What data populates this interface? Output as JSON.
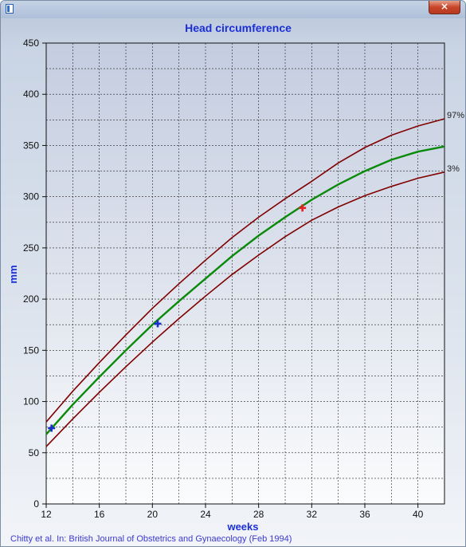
{
  "window": {
    "close_glyph": "×"
  },
  "chart_data": {
    "type": "line",
    "title": "Head circumference",
    "xlabel": "weeks",
    "ylabel": "mm",
    "xlim": [
      12,
      42
    ],
    "ylim": [
      0,
      450
    ],
    "xticks": [
      12,
      16,
      20,
      24,
      28,
      32,
      36,
      40
    ],
    "yticks": [
      0,
      50,
      100,
      150,
      200,
      250,
      300,
      350,
      400,
      450
    ],
    "grid": true,
    "curves": [
      {
        "label": "97%",
        "color": "#800000",
        "x": [
          12,
          14,
          16,
          18,
          20,
          22,
          24,
          26,
          28,
          30,
          32,
          34,
          36,
          38,
          40,
          42
        ],
        "y": [
          80,
          110,
          138,
          165,
          191,
          215,
          238,
          260,
          280,
          298,
          315,
          333,
          348,
          360,
          369,
          376
        ]
      },
      {
        "label": "",
        "color": "#0a8a0a",
        "x": [
          12,
          14,
          16,
          18,
          20,
          22,
          24,
          26,
          28,
          30,
          32,
          34,
          36,
          38,
          40,
          42
        ],
        "y": [
          68,
          97,
          124,
          150,
          175,
          198,
          220,
          242,
          262,
          280,
          297,
          312,
          325,
          336,
          344,
          349
        ]
      },
      {
        "label": "3%",
        "color": "#800000",
        "x": [
          12,
          14,
          16,
          18,
          20,
          22,
          24,
          26,
          28,
          30,
          32,
          34,
          36,
          38,
          40,
          42
        ],
        "y": [
          56,
          83,
          109,
          134,
          158,
          181,
          203,
          224,
          243,
          261,
          277,
          290,
          301,
          310,
          318,
          324
        ]
      }
    ],
    "markers": [
      {
        "x": 12.4,
        "y": 74,
        "color": "#1a2fd0"
      },
      {
        "x": 20.4,
        "y": 176,
        "color": "#1a2fd0"
      },
      {
        "x": 31.3,
        "y": 289,
        "color": "#e82020"
      }
    ],
    "source": "Chitty et al. In: British Journal of Obstetrics and Gynaecology (Feb 1994)"
  }
}
